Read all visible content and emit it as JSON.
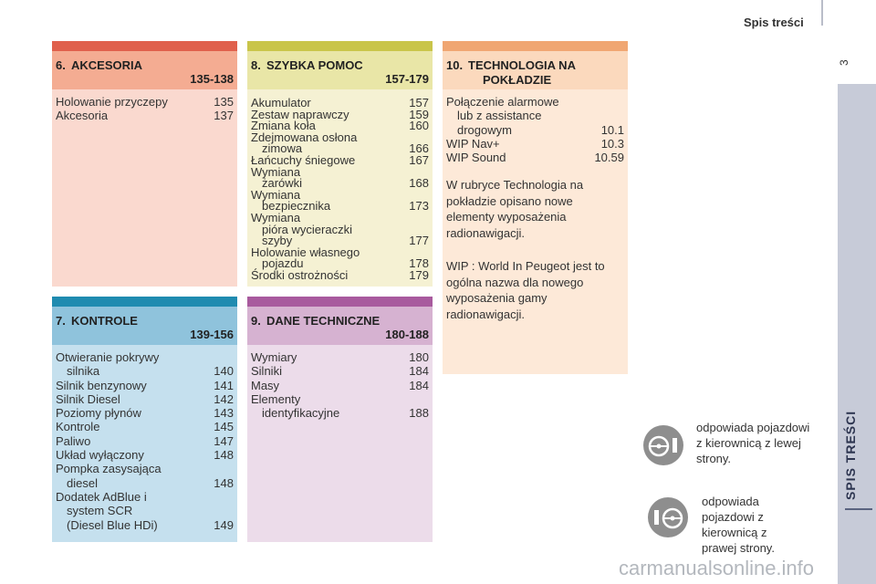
{
  "header": {
    "title": "Spis treści",
    "page_number": "3"
  },
  "sidebar": {
    "label": "SPIS TREŚCI"
  },
  "sections": {
    "s6": {
      "number": "6.",
      "title": "AKCESORIA",
      "range": "135-138",
      "colors": {
        "bar": "#e0604c",
        "head": "#f4ac92",
        "body": "#fad9cf"
      },
      "items": [
        {
          "label": "Holowanie przyczepy",
          "page": "135"
        },
        {
          "label": "Akcesoria",
          "page": "137"
        }
      ]
    },
    "s7": {
      "number": "7.",
      "title": "KONTROLE",
      "range": "139-156",
      "colors": {
        "bar": "#1f8bb0",
        "head": "#8fc3dc",
        "body": "#c5e0ee"
      },
      "items": [
        {
          "label": "Otwieranie pokrywy",
          "cont": "silnika",
          "page": "140"
        },
        {
          "label": "Silnik benzynowy",
          "page": "141"
        },
        {
          "label": "Silnik Diesel",
          "page": "142"
        },
        {
          "label": "Poziomy płynów",
          "page": "143"
        },
        {
          "label": "Kontrole",
          "page": "145"
        },
        {
          "label": "Paliwo",
          "page": "147"
        },
        {
          "label": "Układ wyłączony",
          "page": "148"
        },
        {
          "label": "Pompka zasysająca",
          "cont": "diesel",
          "page": "148"
        },
        {
          "label": "Dodatek AdBlue i",
          "cont": "system SCR",
          "cont2": "(Diesel Blue HDi)",
          "page": "149"
        }
      ]
    },
    "s8": {
      "number": "8.",
      "title": "SZYBKA POMOC",
      "range": "157-179",
      "colors": {
        "bar": "#c9c54a",
        "head": "#e9e6a7",
        "body": "#f5f1d3"
      },
      "items": [
        {
          "label": "Akumulator",
          "page": "157"
        },
        {
          "label": "Zestaw naprawczy",
          "page": "159"
        },
        {
          "label": "Zmiana koła",
          "page": "160"
        },
        {
          "label": "Zdejmowana osłona",
          "cont": "zimowa",
          "page": "166"
        },
        {
          "label": "Łańcuchy śniegowe",
          "page": "167"
        },
        {
          "label": "Wymiana",
          "cont": "żarówki",
          "page": "168"
        },
        {
          "label": "Wymiana",
          "cont": "bezpiecznika",
          "page": "173"
        },
        {
          "label": "Wymiana",
          "cont": "pióra wycieraczki",
          "cont2": "szyby",
          "page": "177"
        },
        {
          "label": "Holowanie własnego",
          "cont": "pojazdu",
          "page": "178"
        },
        {
          "label": "Środki ostrożności",
          "page": "179"
        }
      ]
    },
    "s9": {
      "number": "9.",
      "title": "DANE TECHNICZNE",
      "range": "180-188",
      "colors": {
        "bar": "#a85a9e",
        "head": "#d6b2d1",
        "body": "#ecdcea"
      },
      "items": [
        {
          "label": "Wymiary",
          "page": "180"
        },
        {
          "label": "Silniki",
          "page": "184"
        },
        {
          "label": "Masy",
          "page": "184"
        },
        {
          "label": "Elementy",
          "cont": "identyfikacyjne",
          "page": "188"
        }
      ]
    },
    "s10": {
      "number": "10.",
      "title_line1": "TECHNOLOGIA NA",
      "title_line2": "POKŁADZIE",
      "colors": {
        "bar": "#f0a672",
        "head": "#fbd9bd",
        "body": "#fde9d8"
      },
      "items": [
        {
          "label": "Połączenie alarmowe",
          "cont": "lub z assistance",
          "cont2": "drogowym",
          "page": "10.1"
        },
        {
          "label": "WIP Nav+",
          "page": "10.3"
        },
        {
          "label": "WIP Sound",
          "page": "10.59"
        }
      ],
      "para1": "W rubryce Technologia na pokładzie opisano nowe elementy wyposażenia radionawigacji.",
      "para2": "WIP : World In Peugeot jest to ogólna nazwa dla nowego wyposażenia gamy radionawigacji."
    }
  },
  "legend": {
    "left_hand": "odpowiada pojazdowi z kierownicą z lewej strony.",
    "right_hand": "odpowiada pojazdowi z kierownicą z prawej strony.",
    "icon_color": "#8e8e8e"
  },
  "watermark": "carmanualsonline.info"
}
